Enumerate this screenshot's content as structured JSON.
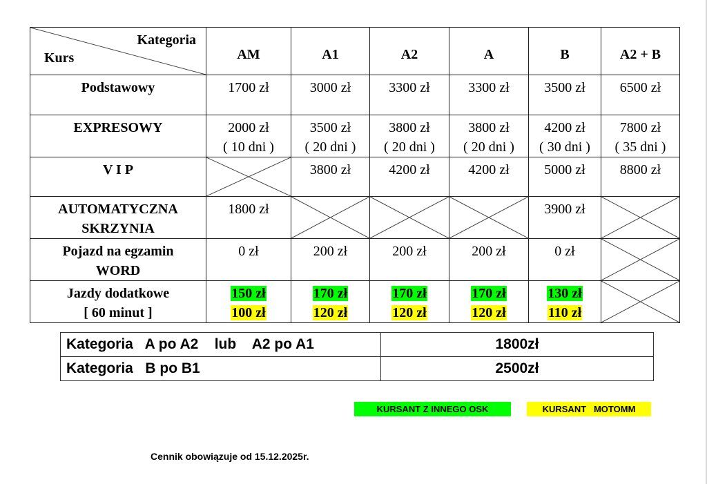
{
  "table": {
    "corner": {
      "top_label": "Kategoria",
      "bottom_label": "Kurs"
    },
    "columns": [
      "AM",
      "A1",
      "A2",
      "A",
      "B",
      "A2 + B"
    ],
    "rows": [
      {
        "label": [
          "Podstawowy"
        ],
        "cells": [
          [
            "1700 zł"
          ],
          [
            "3000 zł"
          ],
          [
            "3300 zł"
          ],
          [
            "3300 zł"
          ],
          [
            "3500 zł"
          ],
          [
            "6500 zł"
          ]
        ]
      },
      {
        "label": [
          "EXPRESOWY"
        ],
        "cells": [
          [
            "2000 zł",
            "( 10 dni )"
          ],
          [
            "3500 zł",
            "( 20 dni )"
          ],
          [
            "3800 zł",
            "( 20 dni )"
          ],
          [
            "3800 zł",
            "( 20 dni )"
          ],
          [
            "4200 zł",
            "( 30 dni )"
          ],
          [
            "7800 zł",
            "( 35 dni )"
          ]
        ]
      },
      {
        "label": [
          "V I P"
        ],
        "cells": [
          null,
          [
            "3800 zł"
          ],
          [
            "4200 zł"
          ],
          [
            "4200 zł"
          ],
          [
            "5000 zł"
          ],
          [
            "8800 zł"
          ]
        ]
      },
      {
        "label": [
          "AUTOMATYCZNA",
          "SKRZYNIA"
        ],
        "cells": [
          [
            "1800 zł"
          ],
          null,
          null,
          null,
          [
            "3900 zł"
          ],
          null
        ]
      },
      {
        "label": [
          "Pojazd na egzamin",
          "WORD"
        ],
        "cells": [
          [
            "0 zł"
          ],
          [
            "200 zł"
          ],
          [
            "200 zł"
          ],
          [
            "200 zł"
          ],
          [
            "0 zł"
          ],
          null
        ]
      },
      {
        "label": [
          "Jazdy dodatkowe",
          "[ 60 minut ]"
        ],
        "highlight": true,
        "cells": [
          [
            "150 zł",
            "100 zł"
          ],
          [
            "170 zł",
            "120 zł"
          ],
          [
            "170 zł",
            "120 zł"
          ],
          [
            "170 zł",
            "120 zł"
          ],
          [
            "130 zł",
            "110 zł"
          ],
          null
        ]
      }
    ]
  },
  "extra_prices": [
    {
      "label": "Kategoria   A po A2    lub    A2 po A1",
      "price": "1800zł"
    },
    {
      "label": "Kategoria   B po B1",
      "price": "2500zł"
    }
  ],
  "legend": [
    {
      "label": "KURSANT Z INNEGO OSK",
      "color": "#00ff00"
    },
    {
      "label": "KURSANT   MOTOMM",
      "color": "#ffff00"
    }
  ],
  "footer": "Cennik obowiązuje od 15.12.2025r."
}
